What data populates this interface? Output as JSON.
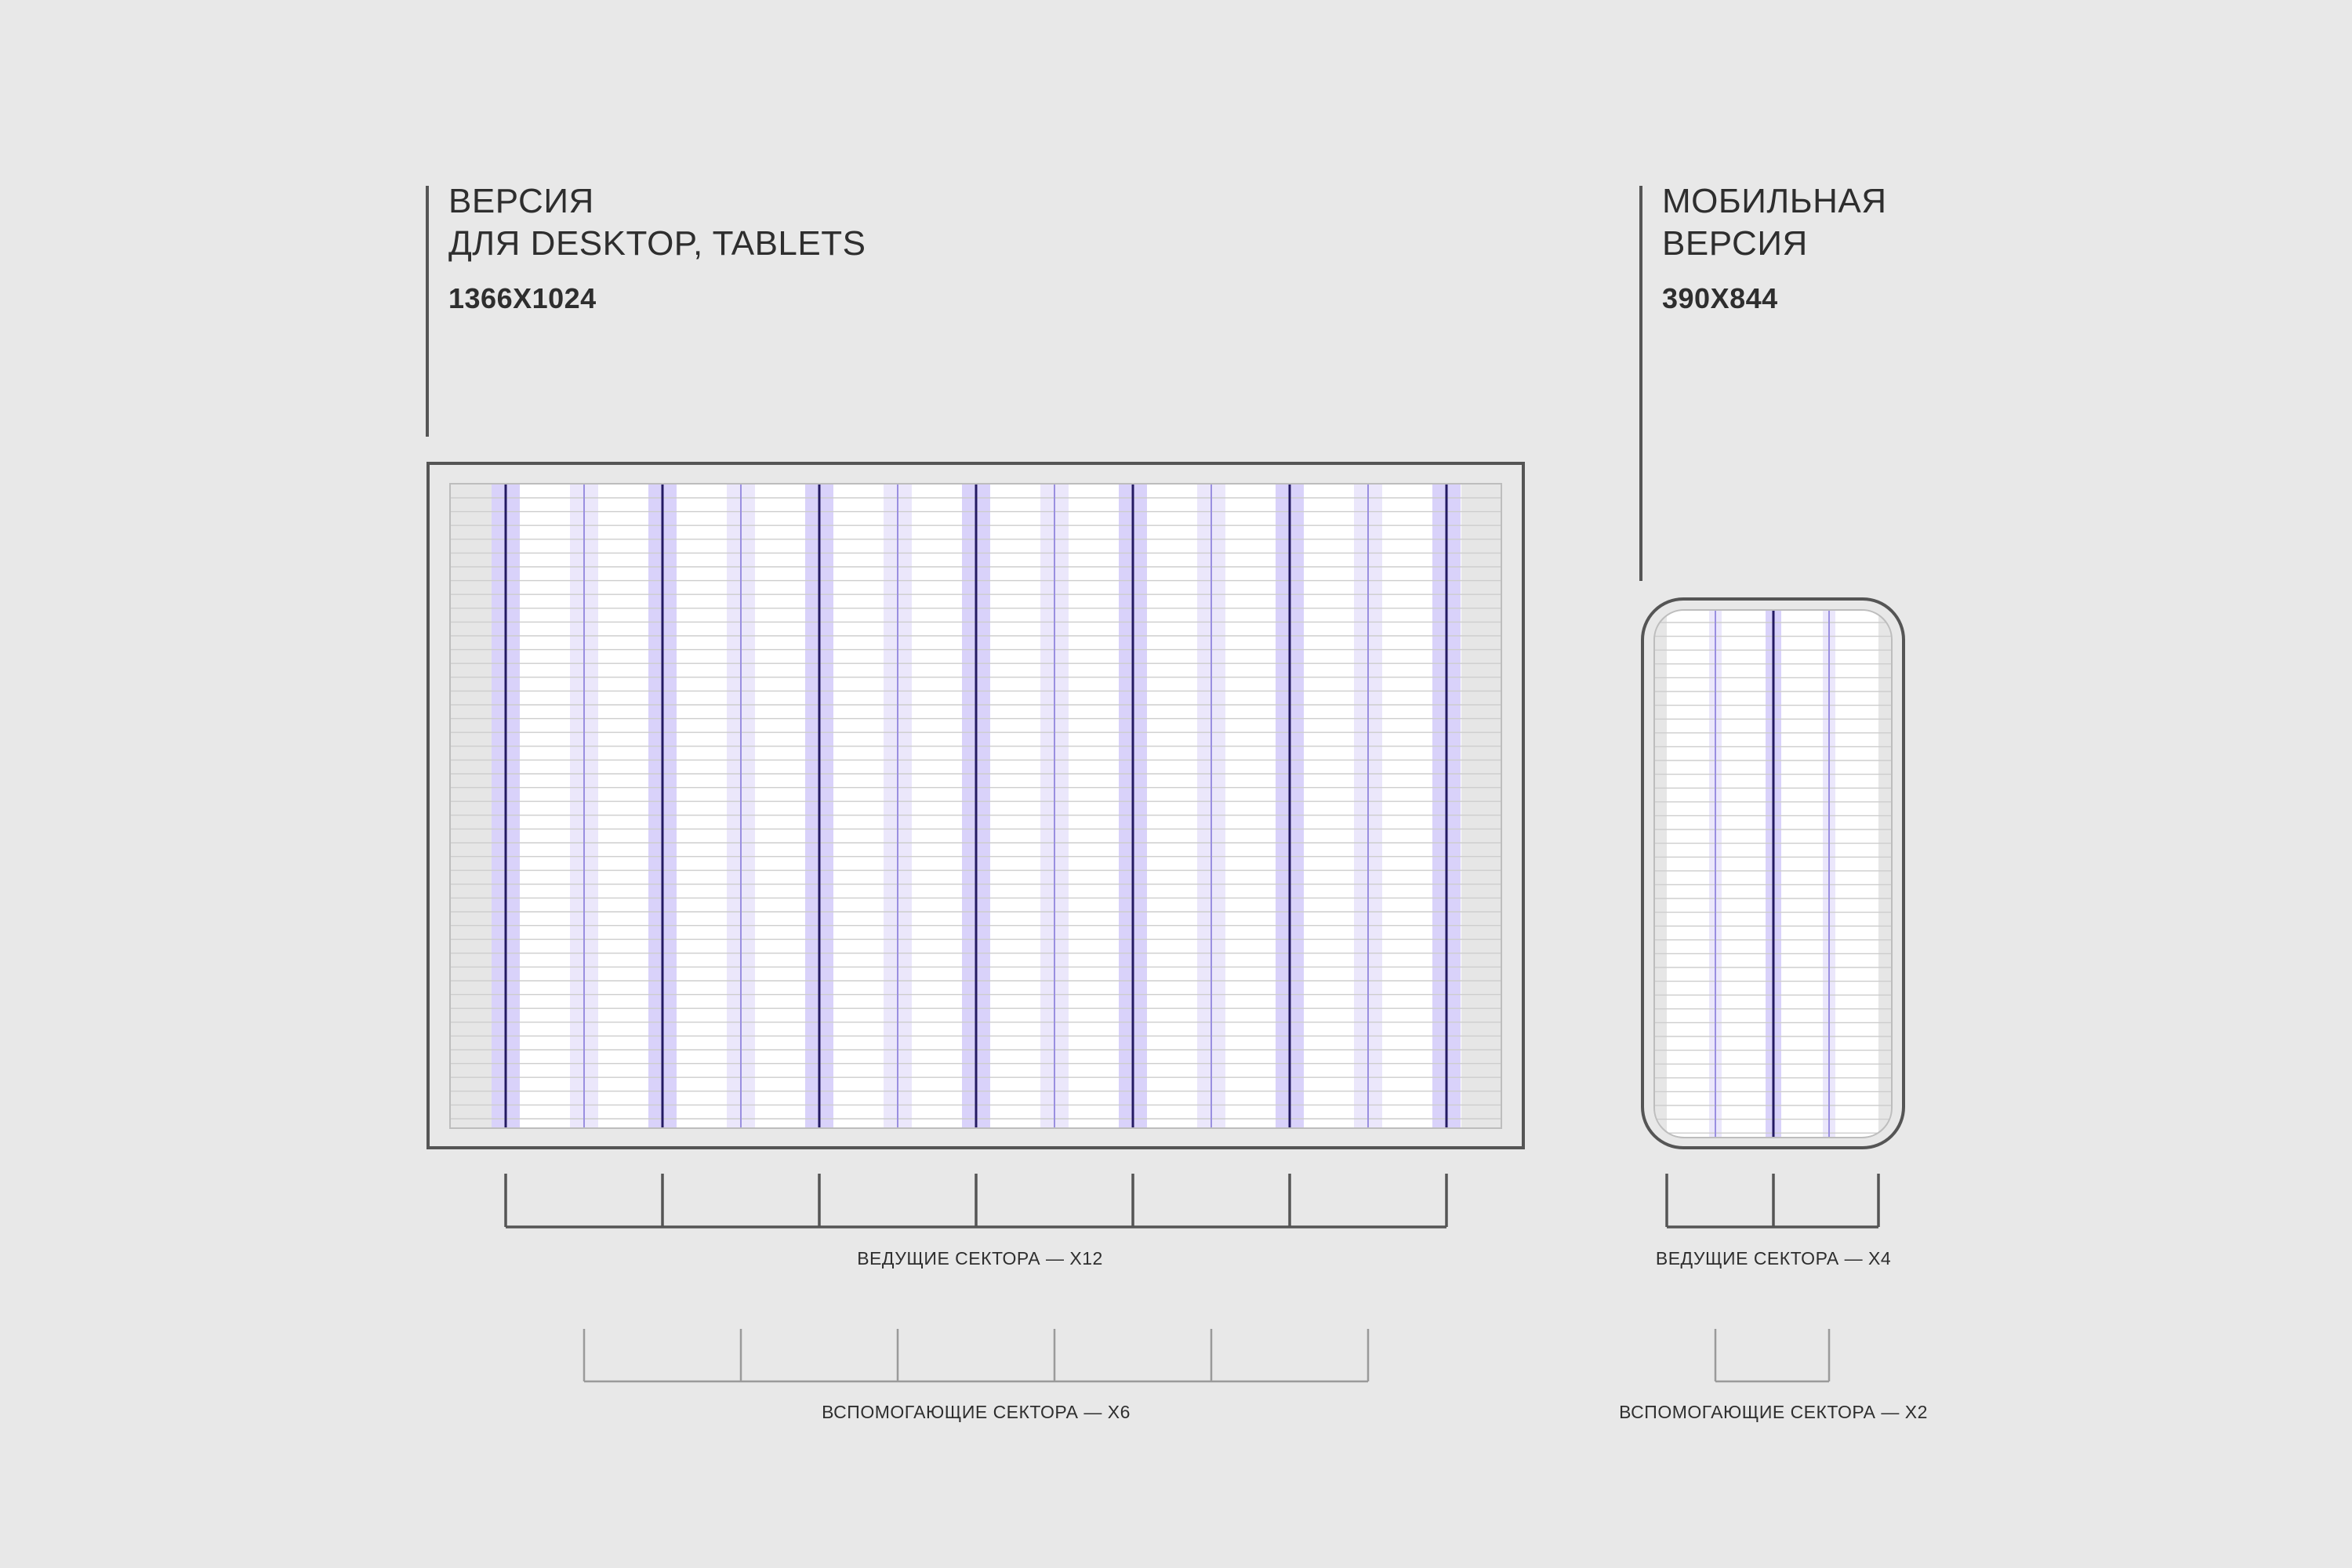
{
  "desktop": {
    "title_line1": "ВЕРСИЯ",
    "title_line2": "ДЛЯ DESKTOP, TABLETS",
    "size": "1366X1024",
    "primary_caption": "ВЕДУЩИЕ СЕКТОРА — Х12",
    "secondary_caption": "ВСПОМОГАЮЩИЕ СЕКТОРА — Х6"
  },
  "mobile": {
    "title_line1": "МОБИЛЬНАЯ",
    "title_line2": "ВЕРСИЯ",
    "size": "390X844",
    "primary_caption": "ВЕДУЩИЕ СЕКТОРА — Х4",
    "secondary_caption": "ВСПОМОГАЮЩИЕ СЕКТОРА — Х2"
  },
  "colors": {
    "background": "#e8e8e8",
    "frame": "#555555",
    "grid_white": "#ffffff",
    "accent_purple": "#d9d2fa",
    "accent_purple_light": "#ebe7fb",
    "primary_line": "#241a63",
    "secondary_line": "#9a8fe0"
  }
}
